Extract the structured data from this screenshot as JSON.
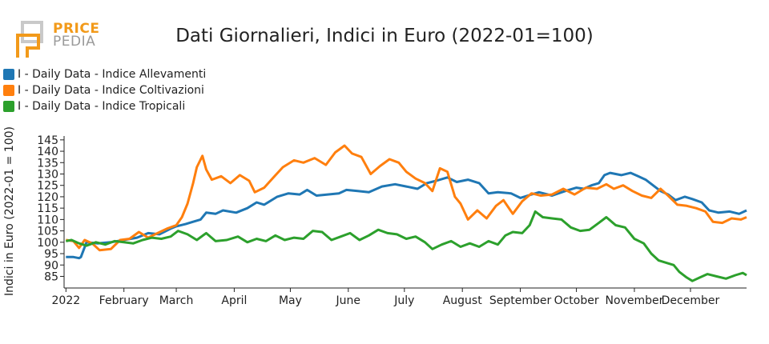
{
  "brand": {
    "line1": "PRICE",
    "line2": "PEDIA",
    "color_primary": "#f29a1a",
    "color_secondary": "#9a9a9a"
  },
  "chart_data": {
    "type": "line",
    "title": "Dati Giornalieri, Indici in Euro (2022-01=100)",
    "xlabel": "",
    "ylabel": "Indici in Euro (2022-01 = 100)",
    "ylim": [
      82,
      146
    ],
    "yticks": [
      85,
      90,
      95,
      100,
      105,
      110,
      115,
      120,
      125,
      130,
      135,
      140,
      145
    ],
    "xlim": [
      "2021-12-31",
      "2022-12-31"
    ],
    "xticks": [
      {
        "date": "2022-01-01",
        "label": "2022"
      },
      {
        "date": "2022-02-01",
        "label": "February"
      },
      {
        "date": "2022-03-01",
        "label": "March"
      },
      {
        "date": "2022-04-01",
        "label": "April"
      },
      {
        "date": "2022-05-01",
        "label": "May"
      },
      {
        "date": "2022-06-01",
        "label": "June"
      },
      {
        "date": "2022-07-01",
        "label": "July"
      },
      {
        "date": "2022-08-01",
        "label": "August"
      },
      {
        "date": "2022-09-01",
        "label": "September"
      },
      {
        "date": "2022-10-01",
        "label": "October"
      },
      {
        "date": "2022-11-01",
        "label": "November"
      },
      {
        "date": "2022-12-01",
        "label": "December"
      }
    ],
    "grid": false,
    "legend_position": "top-left",
    "series": [
      {
        "name": "I - Daily Data - Indice Allevamenti",
        "color": "#1f77b4",
        "points": [
          [
            "2022-01-01",
            93.5
          ],
          [
            "2022-01-05",
            93.5
          ],
          [
            "2022-01-08",
            93.0
          ],
          [
            "2022-01-09",
            93.5
          ],
          [
            "2022-01-12",
            100.0
          ],
          [
            "2022-01-18",
            99.5
          ],
          [
            "2022-01-25",
            100.0
          ],
          [
            "2022-02-01",
            101.0
          ],
          [
            "2022-02-08",
            102.0
          ],
          [
            "2022-02-14",
            104.0
          ],
          [
            "2022-02-20",
            103.5
          ],
          [
            "2022-02-26",
            106.0
          ],
          [
            "2022-03-01",
            107.0
          ],
          [
            "2022-03-06",
            108.0
          ],
          [
            "2022-03-10",
            109.0
          ],
          [
            "2022-03-14",
            110.0
          ],
          [
            "2022-03-17",
            113.0
          ],
          [
            "2022-03-22",
            112.5
          ],
          [
            "2022-03-26",
            114.0
          ],
          [
            "2022-04-02",
            113.0
          ],
          [
            "2022-04-08",
            115.0
          ],
          [
            "2022-04-13",
            117.5
          ],
          [
            "2022-04-17",
            116.5
          ],
          [
            "2022-04-24",
            120.0
          ],
          [
            "2022-04-30",
            121.5
          ],
          [
            "2022-05-06",
            121.0
          ],
          [
            "2022-05-10",
            123.0
          ],
          [
            "2022-05-15",
            120.5
          ],
          [
            "2022-05-21",
            121.0
          ],
          [
            "2022-05-27",
            121.5
          ],
          [
            "2022-05-31",
            123.0
          ],
          [
            "2022-06-06",
            122.5
          ],
          [
            "2022-06-12",
            122.0
          ],
          [
            "2022-06-19",
            124.5
          ],
          [
            "2022-06-26",
            125.5
          ],
          [
            "2022-07-02",
            124.5
          ],
          [
            "2022-07-08",
            123.5
          ],
          [
            "2022-07-13",
            126.0
          ],
          [
            "2022-07-18",
            127.0
          ],
          [
            "2022-07-24",
            128.5
          ],
          [
            "2022-07-29",
            126.5
          ],
          [
            "2022-08-04",
            127.5
          ],
          [
            "2022-08-10",
            126.0
          ],
          [
            "2022-08-15",
            121.5
          ],
          [
            "2022-08-20",
            122.0
          ],
          [
            "2022-08-27",
            121.5
          ],
          [
            "2022-09-01",
            119.5
          ],
          [
            "2022-09-05",
            120.5
          ],
          [
            "2022-09-11",
            122.0
          ],
          [
            "2022-09-18",
            120.5
          ],
          [
            "2022-09-25",
            122.5
          ],
          [
            "2022-10-01",
            124.0
          ],
          [
            "2022-10-05",
            123.5
          ],
          [
            "2022-10-09",
            125.0
          ],
          [
            "2022-10-13",
            126.0
          ],
          [
            "2022-10-16",
            129.5
          ],
          [
            "2022-10-19",
            130.5
          ],
          [
            "2022-10-25",
            129.5
          ],
          [
            "2022-10-30",
            130.5
          ],
          [
            "2022-11-03",
            129.0
          ],
          [
            "2022-11-07",
            127.5
          ],
          [
            "2022-11-11",
            125.0
          ],
          [
            "2022-11-15",
            122.5
          ],
          [
            "2022-11-19",
            121.0
          ],
          [
            "2022-11-23",
            118.5
          ],
          [
            "2022-11-28",
            120.0
          ],
          [
            "2022-12-02",
            119.0
          ],
          [
            "2022-12-07",
            117.5
          ],
          [
            "2022-12-11",
            114.0
          ],
          [
            "2022-12-16",
            113.0
          ],
          [
            "2022-12-22",
            113.5
          ],
          [
            "2022-12-27",
            112.5
          ],
          [
            "2022-12-31",
            114.0
          ]
        ]
      },
      {
        "name": "I - Daily Data - Indice Coltivazioni",
        "color": "#ff7f0e",
        "points": [
          [
            "2022-01-01",
            101.0
          ],
          [
            "2022-01-05",
            100.5
          ],
          [
            "2022-01-08",
            97.5
          ],
          [
            "2022-01-11",
            101.0
          ],
          [
            "2022-01-15",
            99.5
          ],
          [
            "2022-01-19",
            96.5
          ],
          [
            "2022-01-25",
            97.0
          ],
          [
            "2022-01-30",
            101.0
          ],
          [
            "2022-02-04",
            101.5
          ],
          [
            "2022-02-09",
            104.5
          ],
          [
            "2022-02-14",
            102.0
          ],
          [
            "2022-02-19",
            104.0
          ],
          [
            "2022-02-24",
            106.0
          ],
          [
            "2022-03-01",
            107.5
          ],
          [
            "2022-03-04",
            111.0
          ],
          [
            "2022-03-07",
            117.0
          ],
          [
            "2022-03-10",
            126.0
          ],
          [
            "2022-03-12",
            133.0
          ],
          [
            "2022-03-15",
            138.0
          ],
          [
            "2022-03-17",
            132.0
          ],
          [
            "2022-03-20",
            127.5
          ],
          [
            "2022-03-25",
            129.0
          ],
          [
            "2022-03-30",
            126.0
          ],
          [
            "2022-04-04",
            129.5
          ],
          [
            "2022-04-09",
            127.0
          ],
          [
            "2022-04-12",
            122.0
          ],
          [
            "2022-04-17",
            124.0
          ],
          [
            "2022-04-22",
            128.5
          ],
          [
            "2022-04-27",
            133.0
          ],
          [
            "2022-05-03",
            136.0
          ],
          [
            "2022-05-08",
            135.0
          ],
          [
            "2022-05-14",
            137.0
          ],
          [
            "2022-05-20",
            134.0
          ],
          [
            "2022-05-25",
            139.5
          ],
          [
            "2022-05-30",
            142.5
          ],
          [
            "2022-06-03",
            139.0
          ],
          [
            "2022-06-08",
            137.5
          ],
          [
            "2022-06-13",
            130.0
          ],
          [
            "2022-06-18",
            133.5
          ],
          [
            "2022-06-23",
            136.5
          ],
          [
            "2022-06-28",
            135.0
          ],
          [
            "2022-07-02",
            131.0
          ],
          [
            "2022-07-07",
            128.0
          ],
          [
            "2022-07-12",
            126.0
          ],
          [
            "2022-07-16",
            122.5
          ],
          [
            "2022-07-20",
            132.5
          ],
          [
            "2022-07-24",
            131.0
          ],
          [
            "2022-07-28",
            120.0
          ],
          [
            "2022-07-31",
            117.0
          ],
          [
            "2022-08-04",
            110.0
          ],
          [
            "2022-08-09",
            114.0
          ],
          [
            "2022-08-14",
            110.5
          ],
          [
            "2022-08-19",
            116.0
          ],
          [
            "2022-08-23",
            118.5
          ],
          [
            "2022-08-28",
            112.5
          ],
          [
            "2022-09-02",
            118.0
          ],
          [
            "2022-09-07",
            121.5
          ],
          [
            "2022-09-12",
            120.5
          ],
          [
            "2022-09-18",
            121.0
          ],
          [
            "2022-09-24",
            123.5
          ],
          [
            "2022-09-30",
            121.0
          ],
          [
            "2022-10-06",
            124.0
          ],
          [
            "2022-10-12",
            123.5
          ],
          [
            "2022-10-17",
            125.5
          ],
          [
            "2022-10-21",
            123.5
          ],
          [
            "2022-10-26",
            125.0
          ],
          [
            "2022-10-31",
            122.5
          ],
          [
            "2022-11-05",
            120.5
          ],
          [
            "2022-11-10",
            119.5
          ],
          [
            "2022-11-15",
            123.5
          ],
          [
            "2022-11-19",
            120.5
          ],
          [
            "2022-11-24",
            116.5
          ],
          [
            "2022-11-29",
            116.0
          ],
          [
            "2022-12-04",
            115.0
          ],
          [
            "2022-12-09",
            113.5
          ],
          [
            "2022-12-13",
            109.0
          ],
          [
            "2022-12-18",
            108.5
          ],
          [
            "2022-12-23",
            110.5
          ],
          [
            "2022-12-28",
            110.0
          ],
          [
            "2022-12-31",
            111.0
          ]
        ]
      },
      {
        "name": "I - Daily Data - Indice Tropicali",
        "color": "#2ca02c",
        "points": [
          [
            "2022-01-01",
            100.5
          ],
          [
            "2022-01-04",
            101.0
          ],
          [
            "2022-01-08",
            99.5
          ],
          [
            "2022-01-12",
            98.5
          ],
          [
            "2022-01-17",
            100.0
          ],
          [
            "2022-01-22",
            99.0
          ],
          [
            "2022-01-27",
            100.5
          ],
          [
            "2022-02-01",
            100.0
          ],
          [
            "2022-02-06",
            99.5
          ],
          [
            "2022-02-11",
            101.0
          ],
          [
            "2022-02-16",
            102.0
          ],
          [
            "2022-02-21",
            101.5
          ],
          [
            "2022-02-26",
            102.5
          ],
          [
            "2022-03-02",
            105.0
          ],
          [
            "2022-03-07",
            103.5
          ],
          [
            "2022-03-12",
            101.0
          ],
          [
            "2022-03-17",
            104.0
          ],
          [
            "2022-03-22",
            100.5
          ],
          [
            "2022-03-28",
            101.0
          ],
          [
            "2022-04-03",
            102.5
          ],
          [
            "2022-04-08",
            100.0
          ],
          [
            "2022-04-13",
            101.5
          ],
          [
            "2022-04-18",
            100.5
          ],
          [
            "2022-04-23",
            103.0
          ],
          [
            "2022-04-28",
            101.0
          ],
          [
            "2022-05-03",
            102.0
          ],
          [
            "2022-05-08",
            101.5
          ],
          [
            "2022-05-13",
            105.0
          ],
          [
            "2022-05-18",
            104.5
          ],
          [
            "2022-05-23",
            101.0
          ],
          [
            "2022-05-28",
            102.5
          ],
          [
            "2022-06-02",
            104.0
          ],
          [
            "2022-06-07",
            101.0
          ],
          [
            "2022-06-12",
            103.0
          ],
          [
            "2022-06-17",
            105.5
          ],
          [
            "2022-06-22",
            104.0
          ],
          [
            "2022-06-27",
            103.5
          ],
          [
            "2022-07-02",
            101.5
          ],
          [
            "2022-07-07",
            102.5
          ],
          [
            "2022-07-12",
            100.0
          ],
          [
            "2022-07-16",
            97.0
          ],
          [
            "2022-07-21",
            99.0
          ],
          [
            "2022-07-26",
            100.5
          ],
          [
            "2022-07-31",
            98.0
          ],
          [
            "2022-08-05",
            99.5
          ],
          [
            "2022-08-10",
            98.0
          ],
          [
            "2022-08-15",
            100.5
          ],
          [
            "2022-08-20",
            99.0
          ],
          [
            "2022-08-24",
            103.0
          ],
          [
            "2022-08-28",
            104.5
          ],
          [
            "2022-09-02",
            104.0
          ],
          [
            "2022-09-06",
            107.5
          ],
          [
            "2022-09-09",
            113.5
          ],
          [
            "2022-09-13",
            111.0
          ],
          [
            "2022-09-18",
            110.5
          ],
          [
            "2022-09-23",
            110.0
          ],
          [
            "2022-09-28",
            106.5
          ],
          [
            "2022-10-03",
            105.0
          ],
          [
            "2022-10-08",
            105.5
          ],
          [
            "2022-10-13",
            108.5
          ],
          [
            "2022-10-17",
            111.0
          ],
          [
            "2022-10-22",
            107.5
          ],
          [
            "2022-10-27",
            106.5
          ],
          [
            "2022-11-01",
            101.5
          ],
          [
            "2022-11-06",
            99.5
          ],
          [
            "2022-11-10",
            95.0
          ],
          [
            "2022-11-14",
            92.0
          ],
          [
            "2022-11-18",
            91.0
          ],
          [
            "2022-11-22",
            90.0
          ],
          [
            "2022-11-25",
            87.0
          ],
          [
            "2022-11-29",
            84.5
          ],
          [
            "2022-12-02",
            83.0
          ],
          [
            "2022-12-06",
            84.5
          ],
          [
            "2022-12-10",
            86.0
          ],
          [
            "2022-12-15",
            85.0
          ],
          [
            "2022-12-20",
            84.0
          ],
          [
            "2022-12-25",
            85.5
          ],
          [
            "2022-12-29",
            86.5
          ],
          [
            "2022-12-31",
            85.5
          ]
        ]
      }
    ]
  }
}
